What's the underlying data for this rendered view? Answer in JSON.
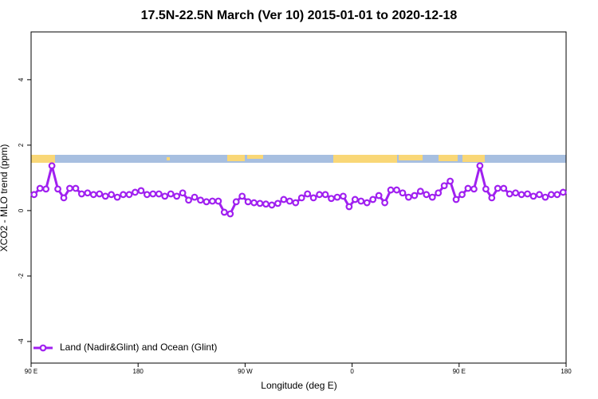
{
  "chart_data": {
    "type": "line",
    "title": "17.5N-22.5N March (Ver 10)   2015-01-01 to 2020-12-18",
    "xlabel": "Longitude (deg E)",
    "ylabel": "XCO2 - MLO trend (ppm)",
    "x": [
      92.5,
      97.5,
      102.5,
      107.5,
      112.5,
      117.5,
      122.5,
      127.5,
      132.5,
      137.5,
      142.5,
      147.5,
      152.5,
      157.5,
      162.5,
      167.5,
      172.5,
      177.5,
      182.5,
      187.5,
      192.5,
      197.5,
      202.5,
      207.5,
      212.5,
      217.5,
      222.5,
      227.5,
      232.5,
      237.5,
      242.5,
      247.5,
      252.5,
      257.5,
      262.5,
      267.5,
      272.5,
      277.5,
      282.5,
      287.5,
      292.5,
      297.5,
      302.5,
      307.5,
      312.5,
      317.5,
      322.5,
      327.5,
      332.5,
      337.5,
      342.5,
      347.5,
      352.5,
      357.5,
      362.5,
      367.5,
      372.5,
      377.5,
      382.5,
      387.5,
      392.5,
      397.5,
      402.5,
      407.5,
      412.5,
      417.5,
      422.5,
      427.5,
      432.5,
      437.5,
      442.5,
      447.5,
      452.5,
      457.5,
      462.5,
      467.5,
      472.5,
      477.5,
      482.5,
      487.5,
      492.5,
      497.5,
      502.5,
      507.5,
      512.5,
      517.5,
      522.5,
      527.5,
      532.5,
      537.5
    ],
    "series": [
      {
        "name": "Land (Nadir&Glint) and Ocean (Glint)",
        "color": "#a020f0",
        "values": [
          0.49,
          0.68,
          0.66,
          1.37,
          0.66,
          0.39,
          0.68,
          0.68,
          0.51,
          0.54,
          0.49,
          0.51,
          0.44,
          0.49,
          0.41,
          0.49,
          0.49,
          0.56,
          0.61,
          0.49,
          0.51,
          0.51,
          0.44,
          0.51,
          0.44,
          0.54,
          0.32,
          0.41,
          0.32,
          0.27,
          0.29,
          0.29,
          -0.05,
          -0.1,
          0.27,
          0.44,
          0.27,
          0.24,
          0.22,
          0.2,
          0.17,
          0.22,
          0.34,
          0.29,
          0.24,
          0.39,
          0.51,
          0.39,
          0.49,
          0.49,
          0.37,
          0.41,
          0.44,
          0.12,
          0.34,
          0.29,
          0.24,
          0.34,
          0.46,
          0.24,
          0.63,
          0.63,
          0.54,
          0.41,
          0.46,
          0.59,
          0.49,
          0.41,
          0.54,
          0.76,
          0.9,
          0.34,
          0.49,
          0.68,
          0.66,
          1.37,
          0.66,
          0.39,
          0.68,
          0.68,
          0.51,
          0.54,
          0.49,
          0.51,
          0.44,
          0.49,
          0.41,
          0.49,
          0.49,
          0.56
        ]
      }
    ],
    "xlim": [
      90,
      540
    ],
    "xticks": [
      {
        "value": 90,
        "label": "90 E"
      },
      180,
      {
        "value": 270,
        "label": "90 W"
      },
      {
        "value": 360,
        "label": "0"
      },
      {
        "value": 450,
        "label": "90 E"
      },
      {
        "value": 540,
        "label": "180"
      }
    ],
    "ylim": [
      -4.66,
      5.46
    ],
    "yticks": [
      -4,
      -2,
      0,
      2,
      4
    ],
    "legend": "bottom-left"
  }
}
